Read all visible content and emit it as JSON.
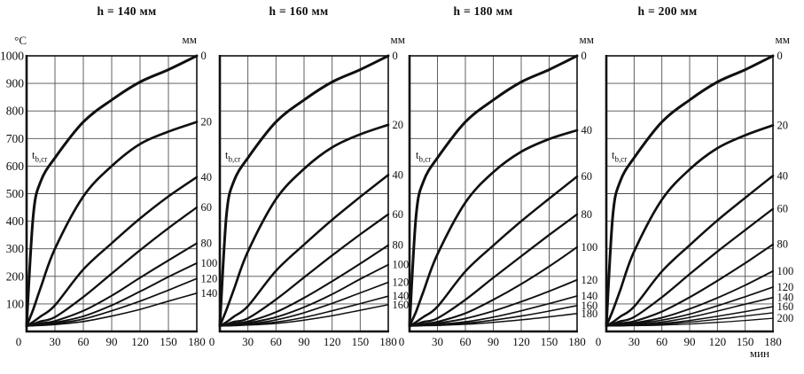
{
  "labels": {
    "temp_unit": "°C",
    "time_unit": "мин",
    "depth_unit": "мм",
    "tbcr_base": "t",
    "tbcr_sub": "b,cr"
  },
  "chart_data": [
    {
      "type": "line",
      "title": "h = 140 мм",
      "x_unit": "мин",
      "y_unit": "°C",
      "depth_axis_unit": "мм",
      "xlim": [
        0,
        180
      ],
      "ylim": [
        0,
        1000
      ],
      "grid": {
        "x_step": 30,
        "y_step": 100
      },
      "x_ticks": [
        "0",
        "30",
        "60",
        "90",
        "120",
        "150",
        "180"
      ],
      "y_ticks": [
        "1000",
        "900",
        "800",
        "700",
        "600",
        "500",
        "400",
        "300",
        "200",
        "100"
      ],
      "x_minutes": [
        0,
        7,
        15,
        30,
        60,
        90,
        120,
        150,
        180
      ],
      "annotation": "t b,cr",
      "series": [
        {
          "depth_mm": 0,
          "label": "0",
          "values": [
            20,
            420,
            545,
            630,
            760,
            840,
            905,
            950,
            1000
          ]
        },
        {
          "depth_mm": 20,
          "label": "20",
          "values": [
            20,
            80,
            160,
            300,
            490,
            600,
            680,
            725,
            760
          ]
        },
        {
          "depth_mm": 40,
          "label": "40",
          "values": [
            20,
            35,
            55,
            95,
            225,
            320,
            410,
            490,
            560
          ]
        },
        {
          "depth_mm": 60,
          "label": "60",
          "values": [
            20,
            27,
            37,
            52,
            125,
            210,
            295,
            375,
            450
          ]
        },
        {
          "depth_mm": 80,
          "label": "80",
          "values": [
            20,
            24,
            30,
            38,
            75,
            130,
            195,
            258,
            320
          ]
        },
        {
          "depth_mm": 100,
          "label": "100",
          "values": [
            20,
            22,
            26,
            32,
            55,
            95,
            145,
            198,
            248
          ]
        },
        {
          "depth_mm": 120,
          "label": "120",
          "values": [
            20,
            21,
            24,
            28,
            45,
            75,
            110,
            150,
            192
          ]
        },
        {
          "depth_mm": 140,
          "label": "140",
          "values": [
            20,
            21,
            22,
            25,
            36,
            56,
            80,
            110,
            139
          ]
        }
      ]
    },
    {
      "type": "line",
      "title": "h = 160 мм",
      "x_unit": "мин",
      "y_unit": "°C",
      "depth_axis_unit": "мм",
      "xlim": [
        0,
        180
      ],
      "ylim": [
        0,
        1000
      ],
      "grid": {
        "x_step": 30,
        "y_step": 100
      },
      "x_ticks": [
        "0",
        "30",
        "60",
        "90",
        "120",
        "150",
        "180"
      ],
      "y_ticks": [],
      "x_minutes": [
        0,
        7,
        15,
        30,
        60,
        90,
        120,
        150,
        180
      ],
      "annotation": "t b,cr",
      "series": [
        {
          "depth_mm": 0,
          "label": "0",
          "values": [
            20,
            420,
            545,
            630,
            760,
            840,
            905,
            950,
            1000
          ]
        },
        {
          "depth_mm": 20,
          "label": "20",
          "values": [
            20,
            78,
            152,
            290,
            480,
            590,
            668,
            715,
            750
          ]
        },
        {
          "depth_mm": 40,
          "label": "40",
          "values": [
            20,
            34,
            54,
            92,
            220,
            315,
            405,
            488,
            568
          ]
        },
        {
          "depth_mm": 60,
          "label": "60",
          "values": [
            20,
            26,
            35,
            48,
            116,
            196,
            276,
            352,
            425
          ]
        },
        {
          "depth_mm": 80,
          "label": "80",
          "values": [
            20,
            24,
            29,
            36,
            70,
            122,
            182,
            246,
            313
          ]
        },
        {
          "depth_mm": 100,
          "label": "100",
          "values": [
            20,
            22,
            26,
            31,
            52,
            88,
            135,
            190,
            242
          ]
        },
        {
          "depth_mm": 120,
          "label": "120",
          "values": [
            20,
            21,
            24,
            27,
            42,
            68,
            102,
            140,
            178
          ]
        },
        {
          "depth_mm": 140,
          "label": "140",
          "values": [
            20,
            21,
            22,
            25,
            34,
            51,
            75,
            101,
            128
          ]
        },
        {
          "depth_mm": 160,
          "label": "160",
          "values": [
            20,
            20,
            21,
            23,
            29,
            41,
            57,
            77,
            97
          ]
        }
      ]
    },
    {
      "type": "line",
      "title": "h = 180 мм",
      "x_unit": "мин",
      "y_unit": "°C",
      "depth_axis_unit": "мм",
      "xlim": [
        0,
        180
      ],
      "ylim": [
        0,
        1000
      ],
      "grid": {
        "x_step": 30,
        "y_step": 100
      },
      "x_ticks": [
        "0",
        "30",
        "60",
        "90",
        "120",
        "150",
        "180"
      ],
      "y_ticks": [],
      "x_minutes": [
        0,
        7,
        15,
        30,
        60,
        90,
        120,
        150,
        180
      ],
      "annotation": "t b,cr",
      "series": [
        {
          "depth_mm": 0,
          "label": "0",
          "values": [
            20,
            420,
            545,
            630,
            760,
            840,
            905,
            950,
            1000
          ]
        },
        {
          "depth_mm": 40,
          "label": "40",
          "values": [
            20,
            72,
            146,
            280,
            468,
            578,
            652,
            698,
            730
          ]
        },
        {
          "depth_mm": 60,
          "label": "60",
          "values": [
            20,
            34,
            53,
            90,
            218,
            312,
            400,
            482,
            562
          ]
        },
        {
          "depth_mm": 80,
          "label": "80",
          "values": [
            20,
            26,
            35,
            48,
            115,
            195,
            273,
            350,
            425
          ]
        },
        {
          "depth_mm": 100,
          "label": "100",
          "values": [
            20,
            23,
            28,
            35,
            66,
            115,
            172,
            236,
            306
          ]
        },
        {
          "depth_mm": 120,
          "label": "120",
          "values": [
            20,
            22,
            25,
            30,
            47,
            74,
            108,
            146,
            187
          ]
        },
        {
          "depth_mm": 140,
          "label": "140",
          "values": [
            20,
            21,
            23,
            26,
            35,
            52,
            75,
            101,
            129
          ]
        },
        {
          "depth_mm": 160,
          "label": "160",
          "values": [
            20,
            20,
            22,
            24,
            30,
            41,
            56,
            74,
            94
          ]
        },
        {
          "depth_mm": 180,
          "label": "180",
          "values": [
            20,
            20,
            21,
            22,
            26,
            33,
            42,
            53,
            65
          ]
        }
      ]
    },
    {
      "type": "line",
      "title": "h = 200 мм",
      "x_unit": "мин",
      "y_unit": "°C",
      "depth_axis_unit": "мм",
      "xlim": [
        0,
        180
      ],
      "ylim": [
        0,
        1000
      ],
      "grid": {
        "x_step": 30,
        "y_step": 100
      },
      "x_ticks": [
        "0",
        "30",
        "60",
        "90",
        "120",
        "150",
        "180"
      ],
      "y_ticks": [],
      "x_minutes": [
        0,
        7,
        15,
        30,
        60,
        90,
        120,
        150,
        180
      ],
      "annotation": "t b,cr",
      "series": [
        {
          "depth_mm": 0,
          "label": "0",
          "values": [
            20,
            420,
            545,
            630,
            760,
            840,
            905,
            950,
            1000
          ]
        },
        {
          "depth_mm": 20,
          "label": "20",
          "values": [
            20,
            76,
            150,
            290,
            478,
            588,
            665,
            712,
            748
          ]
        },
        {
          "depth_mm": 40,
          "label": "40",
          "values": [
            20,
            34,
            54,
            90,
            218,
            313,
            403,
            485,
            565
          ]
        },
        {
          "depth_mm": 60,
          "label": "60",
          "values": [
            20,
            27,
            37,
            52,
            124,
            208,
            290,
            368,
            445
          ]
        },
        {
          "depth_mm": 80,
          "label": "80",
          "values": [
            20,
            24,
            30,
            37,
            72,
            124,
            184,
            248,
            316
          ]
        },
        {
          "depth_mm": 100,
          "label": "100",
          "values": [
            20,
            22,
            26,
            31,
            50,
            82,
            122,
            168,
            219
          ]
        },
        {
          "depth_mm": 120,
          "label": "120",
          "values": [
            20,
            21,
            24,
            28,
            41,
            63,
            93,
            126,
            161
          ]
        },
        {
          "depth_mm": 140,
          "label": "140",
          "values": [
            20,
            21,
            22,
            25,
            34,
            51,
            74,
            99,
            123
          ]
        },
        {
          "depth_mm": 160,
          "label": "160",
          "values": [
            20,
            20,
            21,
            23,
            29,
            40,
            55,
            72,
            90
          ]
        },
        {
          "depth_mm": 180,
          "label": "",
          "values": [
            20,
            20,
            21,
            22,
            26,
            34,
            44,
            56,
            68
          ]
        },
        {
          "depth_mm": 200,
          "label": "200",
          "values": [
            20,
            20,
            20,
            21,
            23,
            27,
            33,
            40,
            48
          ]
        }
      ]
    }
  ]
}
